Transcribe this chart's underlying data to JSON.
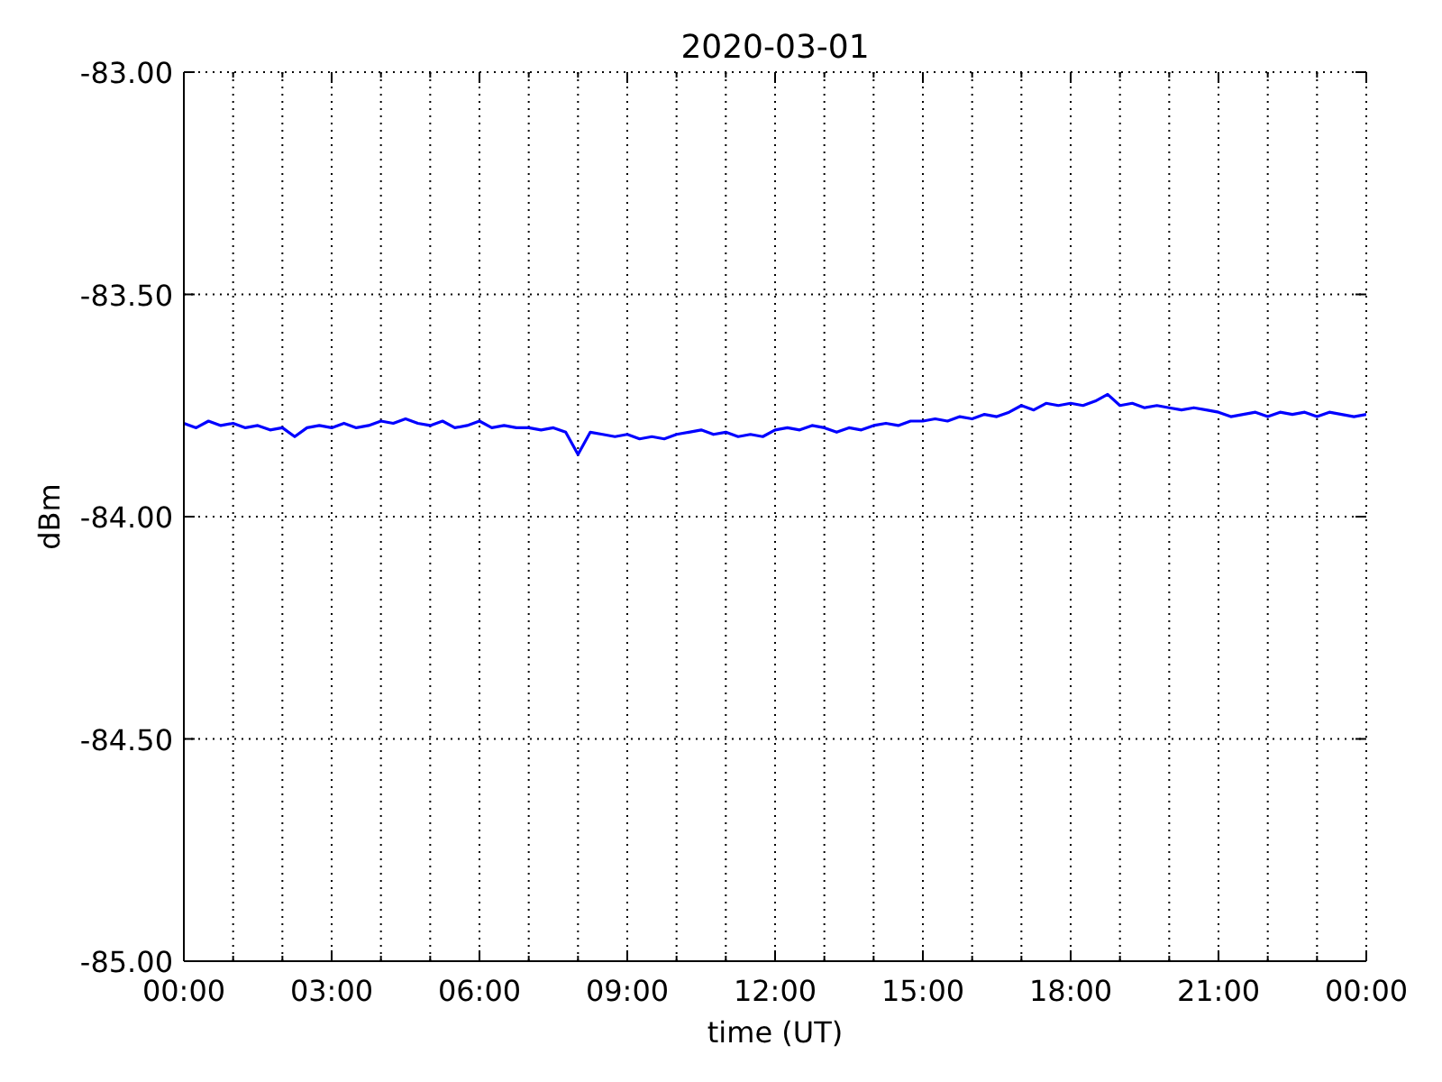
{
  "chart_data": {
    "type": "line",
    "title": "2020-03-01",
    "xlabel": "time (UT)",
    "ylabel": "dBm",
    "x": [
      0,
      0.25,
      0.5,
      0.75,
      1,
      1.25,
      1.5,
      1.75,
      2,
      2.25,
      2.5,
      2.75,
      3,
      3.25,
      3.5,
      3.75,
      4,
      4.25,
      4.5,
      4.75,
      5,
      5.25,
      5.5,
      5.75,
      6,
      6.25,
      6.5,
      6.75,
      7,
      7.25,
      7.5,
      7.75,
      8,
      8.25,
      8.5,
      8.75,
      9,
      9.25,
      9.5,
      9.75,
      10,
      10.25,
      10.5,
      10.75,
      11,
      11.25,
      11.5,
      11.75,
      12,
      12.25,
      12.5,
      12.75,
      13,
      13.25,
      13.5,
      13.75,
      14,
      14.25,
      14.5,
      14.75,
      15,
      15.25,
      15.5,
      15.75,
      16,
      16.25,
      16.5,
      16.75,
      17,
      17.25,
      17.5,
      17.75,
      18,
      18.25,
      18.5,
      18.75,
      19,
      19.25,
      19.5,
      19.75,
      20,
      20.25,
      20.5,
      20.75,
      21,
      21.25,
      21.5,
      21.75,
      22,
      22.25,
      22.5,
      22.75,
      23,
      23.25,
      23.5,
      23.75,
      24
    ],
    "series": [
      {
        "color": "#0000ff",
        "values": [
          -83.79,
          -83.8,
          -83.785,
          -83.795,
          -83.79,
          -83.8,
          -83.795,
          -83.805,
          -83.8,
          -83.82,
          -83.8,
          -83.795,
          -83.8,
          -83.79,
          -83.8,
          -83.795,
          -83.785,
          -83.79,
          -83.78,
          -83.79,
          -83.795,
          -83.785,
          -83.8,
          -83.795,
          -83.785,
          -83.8,
          -83.795,
          -83.8,
          -83.8,
          -83.805,
          -83.8,
          -83.81,
          -83.86,
          -83.81,
          -83.815,
          -83.82,
          -83.815,
          -83.825,
          -83.82,
          -83.825,
          -83.815,
          -83.81,
          -83.805,
          -83.815,
          -83.81,
          -83.82,
          -83.815,
          -83.82,
          -83.805,
          -83.8,
          -83.805,
          -83.795,
          -83.8,
          -83.81,
          -83.8,
          -83.805,
          -83.795,
          -83.79,
          -83.795,
          -83.785,
          -83.785,
          -83.78,
          -83.785,
          -83.775,
          -83.78,
          -83.77,
          -83.775,
          -83.765,
          -83.75,
          -83.76,
          -83.745,
          -83.75,
          -83.745,
          -83.75,
          -83.74,
          -83.725,
          -83.75,
          -83.745,
          -83.755,
          -83.75,
          -83.755,
          -83.76,
          -83.755,
          -83.76,
          -83.765,
          -83.775,
          -83.77,
          -83.765,
          -83.775,
          -83.765,
          -83.77,
          -83.765,
          -83.775,
          -83.765,
          -83.77,
          -83.775,
          -83.77
        ]
      }
    ],
    "xlim": [
      0,
      24
    ],
    "xticks": [
      {
        "value": 0,
        "label": "00:00"
      },
      {
        "value": 1,
        "label": null
      },
      {
        "value": 2,
        "label": null
      },
      {
        "value": 3,
        "label": "03:00"
      },
      {
        "value": 4,
        "label": null
      },
      {
        "value": 5,
        "label": null
      },
      {
        "value": 6,
        "label": "06:00"
      },
      {
        "value": 7,
        "label": null
      },
      {
        "value": 8,
        "label": null
      },
      {
        "value": 9,
        "label": "09:00"
      },
      {
        "value": 10,
        "label": null
      },
      {
        "value": 11,
        "label": null
      },
      {
        "value": 12,
        "label": "12:00"
      },
      {
        "value": 13,
        "label": null
      },
      {
        "value": 14,
        "label": null
      },
      {
        "value": 15,
        "label": "15:00"
      },
      {
        "value": 16,
        "label": null
      },
      {
        "value": 17,
        "label": null
      },
      {
        "value": 18,
        "label": "18:00"
      },
      {
        "value": 19,
        "label": null
      },
      {
        "value": 20,
        "label": null
      },
      {
        "value": 21,
        "label": "21:00"
      },
      {
        "value": 22,
        "label": null
      },
      {
        "value": 23,
        "label": null
      },
      {
        "value": 24,
        "label": "00:00"
      }
    ],
    "ylim": [
      -85,
      -83
    ],
    "yticks": [
      {
        "value": -85,
        "label": "-85.00"
      },
      {
        "value": -84.5,
        "label": "-84.50"
      },
      {
        "value": -84,
        "label": "-84.00"
      },
      {
        "value": -83.5,
        "label": "-83.50"
      },
      {
        "value": -83,
        "label": "-83.00"
      }
    ],
    "grid": true,
    "marker": "none",
    "line_style": "solid"
  }
}
